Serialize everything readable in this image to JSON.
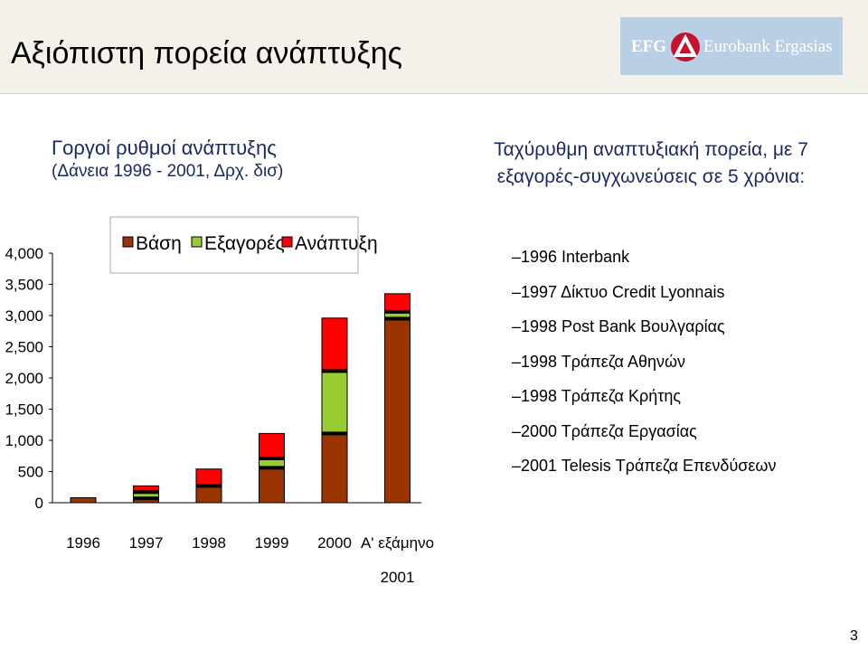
{
  "title": "Αξιόπιστη πορεία ανάπτυξης",
  "logo": {
    "text_left": "EFG",
    "text_right": "Eurobank Ergasias",
    "background": "#b9cfe6",
    "emblem_color": "#c8102e"
  },
  "left_heading": {
    "line1": "Γοργοί ρυθμοί ανάπτυξης",
    "line2": "(Δάνεια 1996 - 2001, Δρχ. δισ)"
  },
  "right_heading": {
    "line1": "Ταχύρυθμη αναπτυξιακή πορεία, με 7",
    "line2": "εξαγορές-συγχωνεύσεις σε 5 χρόνια:"
  },
  "acquisitions": [
    "1996 Interbank",
    "1997 Δίκτυο Credit Lyonnais",
    "1998 Post Bank Βουλγαρίας",
    "1998 Τράπεζα Αθηνών",
    "1998 Τράπεζα Κρήτης",
    "2000 Τράπεζα Εργασίας",
    "2001 Telesis Τράπεζα Επενδύσεων"
  ],
  "page_number": "3",
  "chart_data": {
    "type": "bar",
    "stacked": true,
    "categories": [
      "1996",
      "1997",
      "1998",
      "1999",
      "2000",
      "Α' εξάμηνο 2001"
    ],
    "category_lines": [
      [
        "1996"
      ],
      [
        "1997"
      ],
      [
        "1998"
      ],
      [
        "1999"
      ],
      [
        "2000"
      ],
      [
        "Α' εξάμηνο",
        "2001"
      ]
    ],
    "series": [
      {
        "name": "Βάση",
        "color": "#993300",
        "values": [
          80,
          70,
          270,
          560,
          1110,
          2950
        ]
      },
      {
        "name": "Εξαγορές",
        "color": "#99cc33",
        "values": [
          0,
          100,
          0,
          150,
          1000,
          110
        ]
      },
      {
        "name": "Ανάπτυξη",
        "color": "#ff0000",
        "values": [
          0,
          100,
          270,
          400,
          850,
          290
        ]
      }
    ],
    "dividers": [
      [],
      [
        70,
        170
      ],
      [
        270
      ],
      [
        560,
        710
      ],
      [
        1110,
        2110
      ],
      [
        2950,
        3060
      ]
    ],
    "y_ticks": [
      "0",
      "500",
      "1,000",
      "1,500",
      "2,000",
      "2,500",
      "3,000",
      "3,500",
      "4,000"
    ],
    "ylim": [
      0,
      4000
    ],
    "grid": false,
    "legend_position": "top-left"
  }
}
